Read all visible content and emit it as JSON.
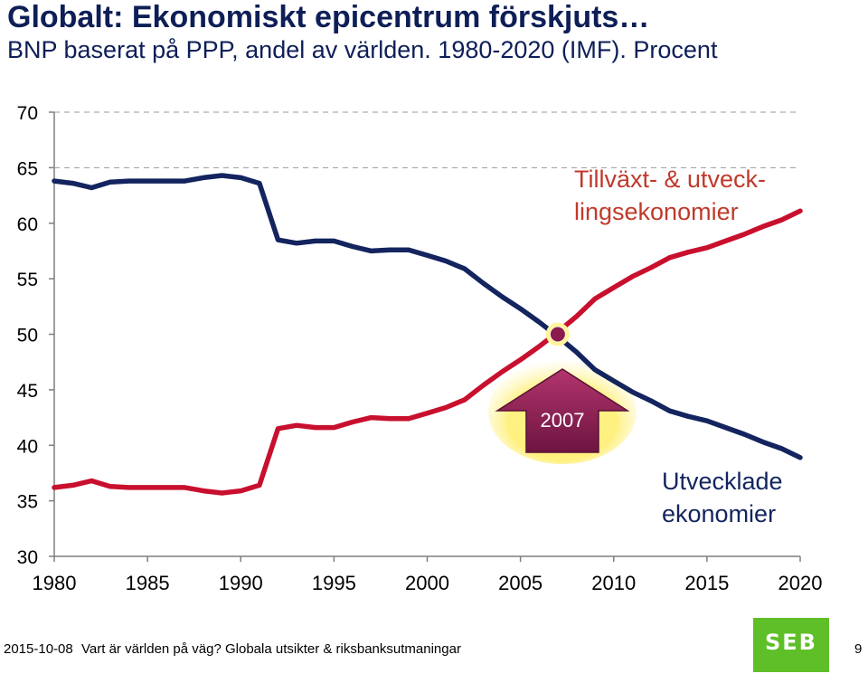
{
  "header": {
    "title": "Globalt: Ekonomiskt epicentrum förskjuts…",
    "subtitle": "BNP baserat på PPP, andel av världen. 1980-2020 (IMF). Procent"
  },
  "footer": {
    "date": "2015-10-08",
    "text": "Vart är världen på väg? Globala utsikter & riksbanksutmaningar",
    "page": "9",
    "logo_text": "SEB",
    "logo_color": "#5fbf29"
  },
  "chart_data": {
    "type": "line",
    "title": "",
    "xlabel": "",
    "ylabel": "",
    "xlim": [
      1980,
      2020
    ],
    "ylim": [
      30,
      70
    ],
    "y_ticks": [
      30,
      35,
      40,
      45,
      50,
      55,
      60,
      65,
      70
    ],
    "x_ticks": [
      1980,
      1985,
      1990,
      1995,
      2000,
      2005,
      2010,
      2015,
      2020
    ],
    "grid": "horizontal dashed at 65 and 70",
    "x": [
      1980,
      1981,
      1982,
      1983,
      1984,
      1985,
      1986,
      1987,
      1988,
      1989,
      1990,
      1991,
      1992,
      1993,
      1994,
      1995,
      1996,
      1997,
      1998,
      1999,
      2000,
      2001,
      2002,
      2003,
      2004,
      2005,
      2006,
      2007,
      2008,
      2009,
      2010,
      2011,
      2012,
      2013,
      2014,
      2015,
      2016,
      2017,
      2018,
      2019,
      2020
    ],
    "series": [
      {
        "name": "Tillväxt- & utveck-lingsekonomier",
        "color": "#c8102e",
        "values": [
          36.2,
          36.4,
          36.8,
          36.3,
          36.2,
          36.2,
          36.2,
          36.2,
          35.9,
          35.7,
          35.9,
          36.4,
          41.5,
          41.8,
          41.6,
          41.6,
          42.1,
          42.5,
          42.4,
          42.4,
          42.9,
          43.4,
          44.1,
          45.4,
          46.6,
          47.7,
          48.9,
          50.2,
          51.6,
          53.2,
          54.2,
          55.2,
          56.0,
          56.9,
          57.4,
          57.8,
          58.4,
          59.0,
          59.7,
          60.3,
          61.1
        ]
      },
      {
        "name": "Utvecklade ekonomier",
        "color": "#13245f",
        "values": [
          63.8,
          63.6,
          63.2,
          63.7,
          63.8,
          63.8,
          63.8,
          63.8,
          64.1,
          64.3,
          64.1,
          63.6,
          58.5,
          58.2,
          58.4,
          58.4,
          57.9,
          57.5,
          57.6,
          57.6,
          57.1,
          56.6,
          55.9,
          54.6,
          53.4,
          52.3,
          51.1,
          49.8,
          48.4,
          46.8,
          45.8,
          44.8,
          44.0,
          43.1,
          42.6,
          42.2,
          41.6,
          41.0,
          40.3,
          39.7,
          38.9
        ]
      }
    ],
    "annotations": {
      "crossover_year": "2007",
      "crossover_value": 50,
      "arrow_label": "2007",
      "arrow_color": "#8b1a4f",
      "label_developing": [
        "Tillväxt- & utveck-",
        "lingsekonomier"
      ],
      "label_developed": [
        "Utvecklade",
        "ekonomier"
      ]
    }
  }
}
